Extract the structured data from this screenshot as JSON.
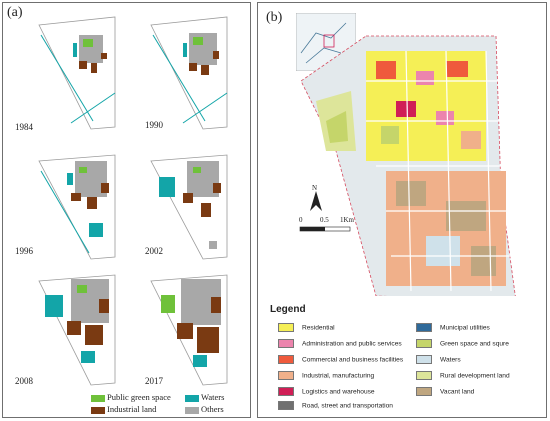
{
  "panel_a": {
    "letter": "(a)",
    "years": [
      "1984",
      "1990",
      "1996",
      "2002",
      "2008",
      "2017"
    ],
    "legend": [
      {
        "label": "Public green",
        "color": "#6fc13a"
      },
      {
        "label": "space",
        "color": ""
      },
      {
        "label": "Waters",
        "color": "#13a5a8"
      },
      {
        "label": "Industrial land",
        "color": "#7a3a12"
      },
      {
        "label": "Others",
        "color": "#a8a8a8"
      }
    ]
  },
  "panel_b": {
    "letter": "(b)",
    "scale": {
      "zero": "0",
      "mid": "0.5",
      "end": "1Km"
    },
    "north": "N",
    "legend_title": "Legend",
    "legend": [
      {
        "label": "Residential",
        "color": "#f5ef56"
      },
      {
        "label": "Administration and public services",
        "color": "#ec84ad"
      },
      {
        "label": "Commercial and business facilities",
        "color": "#ef5a3c"
      },
      {
        "label": "Industrial, manufacturing",
        "color": "#f0b08a"
      },
      {
        "label": "Logistics and warehouse",
        "color": "#d01e56"
      },
      {
        "label": "Road, street and transportation",
        "color": "#707070"
      },
      {
        "label": "Municipal utilities",
        "color": "#2f6a9a"
      },
      {
        "label": "Green space and squre",
        "color": "#c5d56a"
      },
      {
        "label": "Waters",
        "color": "#cfe1ea"
      },
      {
        "label": "Rural development land",
        "color": "#dde59a"
      },
      {
        "label": "Vacant land",
        "color": "#bfa680"
      }
    ]
  }
}
